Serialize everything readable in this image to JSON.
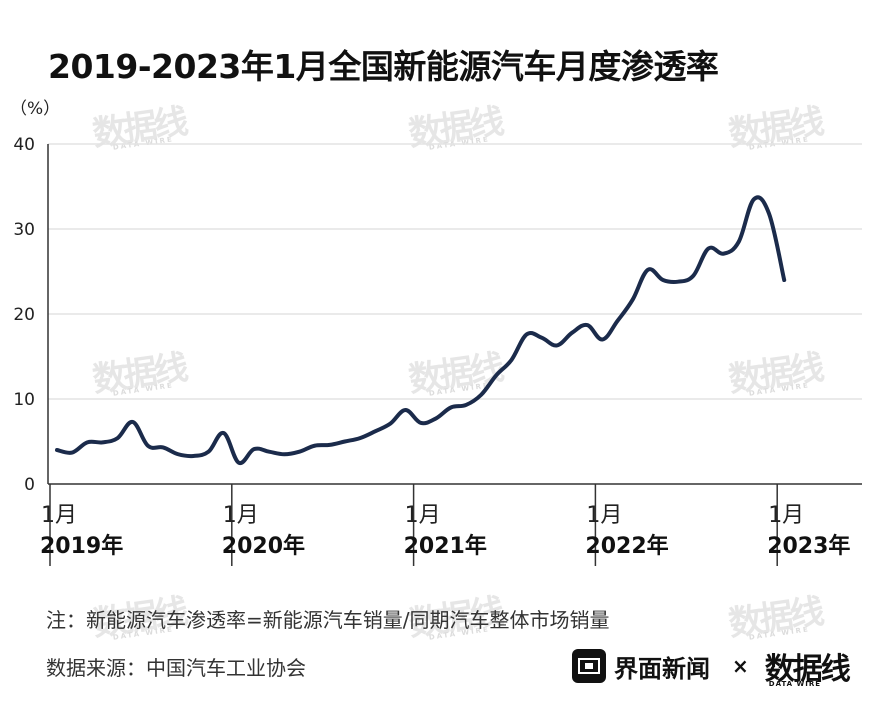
{
  "title": "2019-2023年1月全国新能源汽车月度渗透率",
  "note": "注：新能源汽车渗透率=新能源汽车销量/同期汽车整体市场销量",
  "source": "数据来源：中国汽车工业协会",
  "brand": {
    "name": "界面新闻",
    "separator": "×",
    "partner": "数据线",
    "partner_sub": "DATA WIRE",
    "logo_icon": "jiemian-logo-icon"
  },
  "watermark": {
    "text": "数据线",
    "sub": "DATA WIRE"
  },
  "colors": {
    "line": "#1b2b4b",
    "grid": "#e3e3e3",
    "axis": "#333333",
    "text": "#222222"
  },
  "chart_data": {
    "type": "line",
    "title": "2019-2023年1月全国新能源汽车月度渗透率",
    "ylabel": "（%）",
    "ylim": [
      0,
      40
    ],
    "yticks": [
      0,
      10,
      20,
      30,
      40
    ],
    "grid": true,
    "x_tick_labels": [
      {
        "month": "1月",
        "year": "2019年",
        "index": 0
      },
      {
        "month": "1月",
        "year": "2020年",
        "index": 12
      },
      {
        "month": "1月",
        "year": "2021年",
        "index": 24
      },
      {
        "month": "1月",
        "year": "2022年",
        "index": 36
      },
      {
        "month": "1月",
        "year": "2023年",
        "index": 48
      }
    ],
    "x": [
      "2019-01",
      "2019-02",
      "2019-03",
      "2019-04",
      "2019-05",
      "2019-06",
      "2019-07",
      "2019-08",
      "2019-09",
      "2019-10",
      "2019-11",
      "2019-12",
      "2020-01",
      "2020-02",
      "2020-03",
      "2020-04",
      "2020-05",
      "2020-06",
      "2020-07",
      "2020-08",
      "2020-09",
      "2020-10",
      "2020-11",
      "2020-12",
      "2021-01",
      "2021-02",
      "2021-03",
      "2021-04",
      "2021-05",
      "2021-06",
      "2021-07",
      "2021-08",
      "2021-09",
      "2021-10",
      "2021-11",
      "2021-12",
      "2022-01",
      "2022-02",
      "2022-03",
      "2022-04",
      "2022-05",
      "2022-06",
      "2022-07",
      "2022-08",
      "2022-09",
      "2022-10",
      "2022-11",
      "2022-12",
      "2023-01"
    ],
    "series": [
      {
        "values": [
          4.0,
          3.7,
          4.9,
          4.9,
          5.4,
          7.3,
          4.5,
          4.3,
          3.5,
          3.3,
          3.8,
          6.0,
          2.5,
          4.1,
          3.8,
          3.5,
          3.8,
          4.5,
          4.6,
          5.0,
          5.4,
          6.2,
          7.1,
          8.7,
          7.2,
          7.7,
          9.0,
          9.3,
          10.5,
          12.8,
          14.6,
          17.6,
          17.2,
          16.3,
          17.8,
          18.7,
          17.0,
          19.2,
          21.7,
          25.2,
          24.0,
          23.8,
          24.5,
          27.7,
          27.1,
          28.5,
          33.5,
          31.8,
          24.0
        ]
      }
    ]
  }
}
